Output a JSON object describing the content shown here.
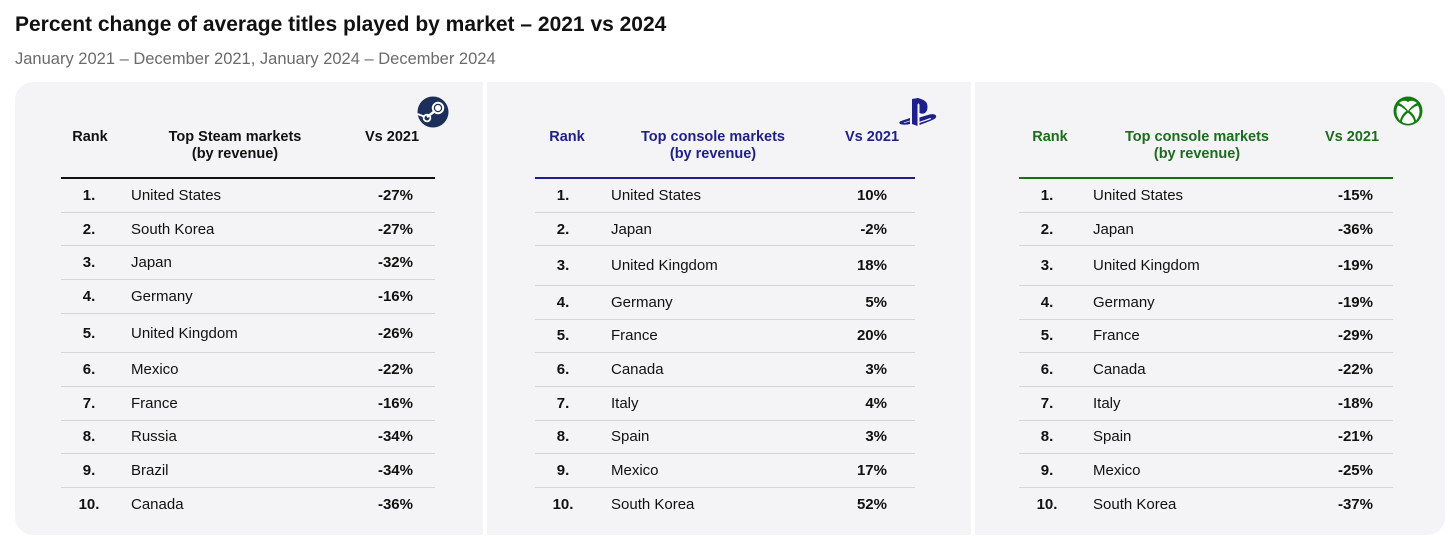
{
  "title": "Percent change of average titles played by market – 2021 vs 2024",
  "subtitle": "January 2021 – December 2021, January 2024 – December 2024",
  "colors": {
    "steam_header": "#111111",
    "playstation_header": "#1f1f8c",
    "xbox_header": "#1d6b1d",
    "panel_bg": "#f4f4f6",
    "row_rule": "#d6d6d8"
  },
  "chart_data": [
    {
      "type": "table",
      "platform_icon": "steam-icon",
      "columns": [
        "Rank",
        "Top Steam markets\n(by revenue)",
        "Vs 2021"
      ],
      "header_rank": "Rank",
      "header_market_line1": "Top Steam markets",
      "header_market_line2": "(by revenue)",
      "header_vs": "Vs 2021",
      "rows": [
        {
          "rank": "1.",
          "market": "United States",
          "vs": "-27%"
        },
        {
          "rank": "2.",
          "market": "South Korea",
          "vs": "-27%"
        },
        {
          "rank": "3.",
          "market": "Japan",
          "vs": "-32%"
        },
        {
          "rank": "4.",
          "market": "Germany",
          "vs": "-16%"
        },
        {
          "rank": "5.",
          "market": "United Kingdom",
          "vs": "-26%"
        },
        {
          "rank": "6.",
          "market": "Mexico",
          "vs": "-22%"
        },
        {
          "rank": "7.",
          "market": "France",
          "vs": "-16%"
        },
        {
          "rank": "8.",
          "market": "Russia",
          "vs": "-34%"
        },
        {
          "rank": "9.",
          "market": "Brazil",
          "vs": "-34%"
        },
        {
          "rank": "10.",
          "market": "Canada",
          "vs": "-36%"
        }
      ]
    },
    {
      "type": "table",
      "platform_icon": "playstation-icon",
      "columns": [
        "Rank",
        "Top console markets\n(by revenue)",
        "Vs 2021"
      ],
      "header_rank": "Rank",
      "header_market_line1": "Top console markets",
      "header_market_line2": "(by revenue)",
      "header_vs": "Vs 2021",
      "rows": [
        {
          "rank": "1.",
          "market": "United States",
          "vs": "10%"
        },
        {
          "rank": "2.",
          "market": "Japan",
          "vs": "-2%"
        },
        {
          "rank": "3.",
          "market": "United Kingdom",
          "vs": "18%"
        },
        {
          "rank": "4.",
          "market": "Germany",
          "vs": "5%"
        },
        {
          "rank": "5.",
          "market": "France",
          "vs": "20%"
        },
        {
          "rank": "6.",
          "market": "Canada",
          "vs": "3%"
        },
        {
          "rank": "7.",
          "market": "Italy",
          "vs": "4%"
        },
        {
          "rank": "8.",
          "market": "Spain",
          "vs": "3%"
        },
        {
          "rank": "9.",
          "market": "Mexico",
          "vs": "17%"
        },
        {
          "rank": "10.",
          "market": "South Korea",
          "vs": "52%"
        }
      ]
    },
    {
      "type": "table",
      "platform_icon": "xbox-icon",
      "columns": [
        "Rank",
        "Top console markets\n(by revenue)",
        "Vs 2021"
      ],
      "header_rank": "Rank",
      "header_market_line1": "Top console markets",
      "header_market_line2": "(by revenue)",
      "header_vs": "Vs 2021",
      "rows": [
        {
          "rank": "1.",
          "market": "United States",
          "vs": "-15%"
        },
        {
          "rank": "2.",
          "market": "Japan",
          "vs": "-36%"
        },
        {
          "rank": "3.",
          "market": "United Kingdom",
          "vs": "-19%"
        },
        {
          "rank": "4.",
          "market": "Germany",
          "vs": "-19%"
        },
        {
          "rank": "5.",
          "market": "France",
          "vs": "-29%"
        },
        {
          "rank": "6.",
          "market": "Canada",
          "vs": "-22%"
        },
        {
          "rank": "7.",
          "market": "Italy",
          "vs": "-18%"
        },
        {
          "rank": "8.",
          "market": "Spain",
          "vs": "-21%"
        },
        {
          "rank": "9.",
          "market": "Mexico",
          "vs": "-25%"
        },
        {
          "rank": "10.",
          "market": "South Korea",
          "vs": "-37%"
        }
      ]
    }
  ]
}
